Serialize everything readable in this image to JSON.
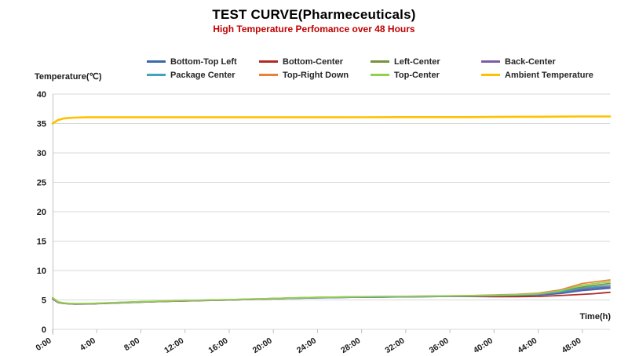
{
  "chart_data": {
    "type": "line",
    "title": "TEST CURVE(Pharmeceuticals)",
    "subtitle": "High Temperature Perfomance over 48 Hours",
    "xlabel": "Time(h)",
    "ylabel": "Temperature(℃)",
    "ylim": [
      0,
      40
    ],
    "xlim": [
      0,
      50.5
    ],
    "y_ticks": [
      0,
      5,
      10,
      15,
      20,
      25,
      30,
      35,
      40
    ],
    "x_tick_hours": [
      0,
      4,
      8,
      12,
      16,
      20,
      24,
      28,
      32,
      36,
      40,
      44,
      48
    ],
    "x_tick_labels": [
      "0:00",
      "4:00",
      "8:00",
      "12:00",
      "16:00",
      "20:00",
      "24:00",
      "28:00",
      "32:00",
      "36:00",
      "40:00",
      "44:00",
      "48:00"
    ],
    "grid": "horizontal",
    "legend_position": "top",
    "colors": {
      "subtitle": "#c00000",
      "gridline": "#d9d9d9",
      "axis": "#bfbfbf"
    },
    "x": [
      0,
      0.5,
      1,
      1.5,
      2,
      3,
      4,
      6,
      8,
      10,
      12,
      14,
      16,
      18,
      20,
      22,
      24,
      26,
      28,
      30,
      32,
      34,
      36,
      38,
      40,
      42,
      44,
      46,
      48,
      49,
      50.5
    ],
    "series": [
      {
        "name": "Bottom-Top Left",
        "color": "#3a68a8",
        "width": 1.8,
        "values": [
          5.15,
          4.55,
          4.4,
          4.33,
          4.3,
          4.31,
          4.36,
          4.5,
          4.63,
          4.73,
          4.83,
          4.91,
          4.98,
          5.08,
          5.18,
          5.28,
          5.36,
          5.42,
          5.47,
          5.5,
          5.53,
          5.57,
          5.6,
          5.64,
          5.69,
          5.74,
          5.84,
          6.1,
          6.6,
          6.75,
          7.0
        ]
      },
      {
        "name": "Bottom-Center",
        "color": "#af2b26",
        "width": 1.8,
        "values": [
          5.3,
          4.6,
          4.44,
          4.36,
          4.33,
          4.34,
          4.39,
          4.53,
          4.66,
          4.76,
          4.86,
          4.94,
          5.01,
          5.11,
          5.21,
          5.31,
          5.39,
          5.45,
          5.5,
          5.52,
          5.54,
          5.57,
          5.6,
          5.58,
          5.55,
          5.55,
          5.6,
          5.75,
          5.95,
          6.05,
          6.3
        ]
      },
      {
        "name": "Left-Center",
        "color": "#77923c",
        "width": 1.8,
        "values": [
          5.35,
          4.65,
          4.48,
          4.4,
          4.36,
          4.37,
          4.42,
          4.56,
          4.69,
          4.79,
          4.89,
          4.97,
          5.04,
          5.14,
          5.24,
          5.34,
          5.42,
          5.48,
          5.53,
          5.56,
          5.59,
          5.63,
          5.66,
          5.7,
          5.76,
          5.85,
          6.0,
          6.45,
          7.2,
          7.45,
          7.8
        ]
      },
      {
        "name": "Back-Center",
        "color": "#7a5da5",
        "width": 1.8,
        "values": [
          5.2,
          4.57,
          4.41,
          4.34,
          4.31,
          4.32,
          4.37,
          4.51,
          4.64,
          4.74,
          4.84,
          4.92,
          4.99,
          5.09,
          5.19,
          5.29,
          5.37,
          5.43,
          5.48,
          5.51,
          5.54,
          5.58,
          5.61,
          5.65,
          5.71,
          5.78,
          5.9,
          6.25,
          6.8,
          7.0,
          7.2
        ]
      },
      {
        "name": "Package Center",
        "color": "#44a2bd",
        "width": 1.8,
        "values": [
          5.25,
          4.6,
          4.43,
          4.35,
          4.32,
          4.33,
          4.38,
          4.52,
          4.65,
          4.75,
          4.85,
          4.93,
          5.0,
          5.1,
          5.2,
          5.3,
          5.38,
          5.44,
          5.49,
          5.52,
          5.55,
          5.59,
          5.62,
          5.66,
          5.72,
          5.8,
          5.95,
          6.35,
          7.0,
          7.2,
          7.45
        ]
      },
      {
        "name": "Top-Right Down",
        "color": "#e8813a",
        "width": 1.8,
        "values": [
          5.3,
          4.62,
          4.45,
          4.37,
          4.34,
          4.35,
          4.4,
          4.54,
          4.67,
          4.77,
          4.87,
          4.95,
          5.02,
          5.12,
          5.24,
          5.34,
          5.44,
          5.5,
          5.55,
          5.58,
          5.61,
          5.65,
          5.69,
          5.74,
          5.85,
          5.95,
          6.15,
          6.7,
          7.8,
          8.05,
          8.4
        ]
      },
      {
        "name": "Top-Center",
        "color": "#92d050",
        "width": 1.8,
        "values": [
          5.4,
          4.68,
          4.5,
          4.42,
          4.38,
          4.39,
          4.44,
          4.58,
          4.71,
          4.81,
          4.91,
          4.99,
          5.06,
          5.16,
          5.26,
          5.36,
          5.44,
          5.5,
          5.55,
          5.58,
          5.61,
          5.65,
          5.68,
          5.72,
          5.8,
          5.9,
          6.05,
          6.55,
          7.5,
          7.75,
          8.1
        ]
      },
      {
        "name": "Ambient Temperature",
        "color": "#ffc000",
        "width": 2.6,
        "values": [
          35.0,
          35.6,
          35.85,
          35.95,
          36.0,
          36.05,
          36.05,
          36.05,
          36.05,
          36.05,
          36.05,
          36.05,
          36.05,
          36.05,
          36.05,
          36.05,
          36.05,
          36.05,
          36.06,
          36.08,
          36.1,
          36.1,
          36.1,
          36.1,
          36.12,
          36.15,
          36.15,
          36.18,
          36.2,
          36.2,
          36.2
        ]
      }
    ]
  }
}
